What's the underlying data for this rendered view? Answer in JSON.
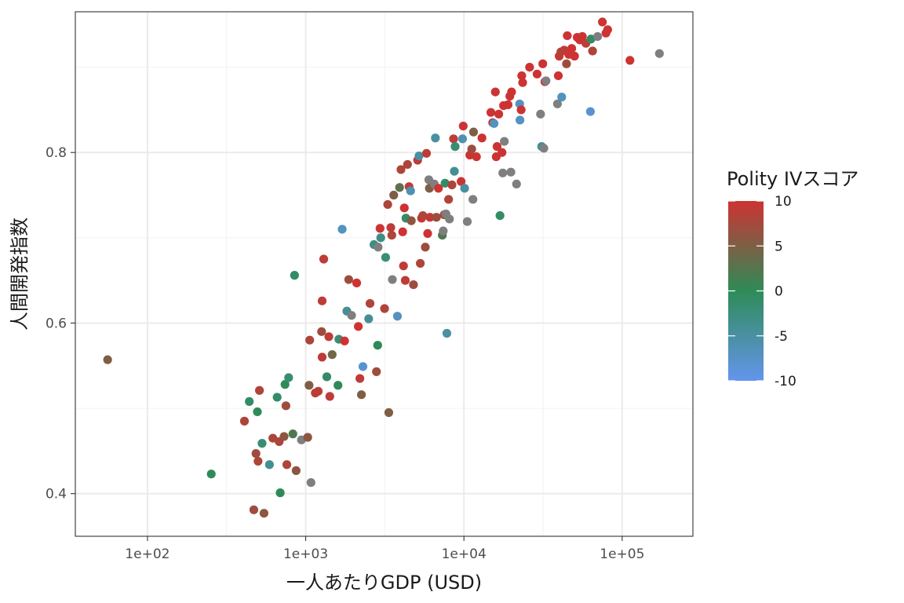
{
  "chart_data": {
    "type": "scatter",
    "title": "",
    "xlabel": "一人あたりGDP (USD)",
    "ylabel": "人間開発指数",
    "x_scale": "log10",
    "xlim": [
      35,
      280000
    ],
    "ylim": [
      0.35,
      0.965
    ],
    "x_ticks": [
      100,
      1000,
      10000,
      100000
    ],
    "x_tick_labels": [
      "1e+02",
      "1e+03",
      "1e+04",
      "1e+05"
    ],
    "y_ticks": [
      0.4,
      0.6,
      0.8
    ],
    "y_tick_labels": [
      "0.4",
      "0.6",
      "0.8"
    ],
    "grid": true,
    "legend": {
      "title": "Polity IVスコア",
      "position": "right",
      "type": "colorbar",
      "range": [
        -10,
        10
      ],
      "breaks": [
        10,
        5,
        0,
        -5,
        -10
      ],
      "break_labels": [
        "10",
        "5",
        "0",
        "-5",
        "-10"
      ],
      "low_color": "#6495ED",
      "mid_color": "#2E8B57",
      "high_color": "#CD3333"
    },
    "na_color": "#7F7F7F",
    "points": [
      {
        "x": 56,
        "y": 0.557,
        "s": 5
      },
      {
        "x": 253,
        "y": 0.423,
        "s": 0
      },
      {
        "x": 440,
        "y": 0.508,
        "s": -1
      },
      {
        "x": 470,
        "y": 0.381,
        "s": 7
      },
      {
        "x": 410,
        "y": 0.485,
        "s": 8
      },
      {
        "x": 485,
        "y": 0.447,
        "s": 7
      },
      {
        "x": 495,
        "y": 0.496,
        "s": 0
      },
      {
        "x": 500,
        "y": 0.438,
        "s": 8
      },
      {
        "x": 510,
        "y": 0.521,
        "s": 8
      },
      {
        "x": 530,
        "y": 0.459,
        "s": -2
      },
      {
        "x": 545,
        "y": 0.377,
        "s": 6
      },
      {
        "x": 590,
        "y": 0.434,
        "s": -4
      },
      {
        "x": 620,
        "y": 0.465,
        "s": 8
      },
      {
        "x": 660,
        "y": 0.513,
        "s": -1
      },
      {
        "x": 680,
        "y": 0.461,
        "s": 8
      },
      {
        "x": 690,
        "y": 0.401,
        "s": 0
      },
      {
        "x": 730,
        "y": 0.467,
        "s": 6
      },
      {
        "x": 740,
        "y": 0.528,
        "s": 0
      },
      {
        "x": 750,
        "y": 0.503,
        "s": 7
      },
      {
        "x": 760,
        "y": 0.434,
        "s": 8
      },
      {
        "x": 780,
        "y": 0.536,
        "s": -2
      },
      {
        "x": 830,
        "y": 0.47,
        "s": 2
      },
      {
        "x": 850,
        "y": 0.656,
        "s": -1
      },
      {
        "x": 870,
        "y": 0.427,
        "s": 6
      },
      {
        "x": 940,
        "y": 0.463,
        "s": null
      },
      {
        "x": 1030,
        "y": 0.466,
        "s": 6
      },
      {
        "x": 1050,
        "y": 0.527,
        "s": 5
      },
      {
        "x": 1060,
        "y": 0.58,
        "s": 8
      },
      {
        "x": 1080,
        "y": 0.413,
        "s": null
      },
      {
        "x": 1150,
        "y": 0.518,
        "s": 9
      },
      {
        "x": 1200,
        "y": 0.52,
        "s": 9
      },
      {
        "x": 1260,
        "y": 0.59,
        "s": 7
      },
      {
        "x": 1270,
        "y": 0.56,
        "s": 9
      },
      {
        "x": 1270,
        "y": 0.626,
        "s": 9
      },
      {
        "x": 1300,
        "y": 0.675,
        "s": 9
      },
      {
        "x": 1360,
        "y": 0.537,
        "s": -1
      },
      {
        "x": 1400,
        "y": 0.584,
        "s": 9
      },
      {
        "x": 1420,
        "y": 0.514,
        "s": 9
      },
      {
        "x": 1470,
        "y": 0.563,
        "s": 4
      },
      {
        "x": 1600,
        "y": 0.527,
        "s": 0
      },
      {
        "x": 1620,
        "y": 0.581,
        "s": -2
      },
      {
        "x": 1700,
        "y": 0.71,
        "s": -7
      },
      {
        "x": 1760,
        "y": 0.579,
        "s": 10
      },
      {
        "x": 1820,
        "y": 0.614,
        "s": -4
      },
      {
        "x": 1870,
        "y": 0.651,
        "s": 7
      },
      {
        "x": 1950,
        "y": 0.609,
        "s": null
      },
      {
        "x": 2100,
        "y": 0.647,
        "s": 10
      },
      {
        "x": 2150,
        "y": 0.596,
        "s": 10
      },
      {
        "x": 2200,
        "y": 0.535,
        "s": 9
      },
      {
        "x": 2250,
        "y": 0.516,
        "s": 5
      },
      {
        "x": 2300,
        "y": 0.549,
        "s": -8
      },
      {
        "x": 2500,
        "y": 0.605,
        "s": -4
      },
      {
        "x": 2550,
        "y": 0.623,
        "s": 8
      },
      {
        "x": 2700,
        "y": 0.692,
        "s": -3
      },
      {
        "x": 2800,
        "y": 0.543,
        "s": 7
      },
      {
        "x": 2850,
        "y": 0.574,
        "s": 0
      },
      {
        "x": 2870,
        "y": 0.689,
        "s": null
      },
      {
        "x": 2950,
        "y": 0.711,
        "s": 10
      },
      {
        "x": 2980,
        "y": 0.7,
        "s": -3
      },
      {
        "x": 3150,
        "y": 0.617,
        "s": 8
      },
      {
        "x": 3200,
        "y": 0.677,
        "s": -2
      },
      {
        "x": 3300,
        "y": 0.739,
        "s": 8
      },
      {
        "x": 3350,
        "y": 0.495,
        "s": 5
      },
      {
        "x": 3450,
        "y": 0.712,
        "s": 9
      },
      {
        "x": 3500,
        "y": 0.703,
        "s": 8
      },
      {
        "x": 3530,
        "y": 0.651,
        "s": null
      },
      {
        "x": 3600,
        "y": 0.75,
        "s": 5
      },
      {
        "x": 3800,
        "y": 0.608,
        "s": -7
      },
      {
        "x": 3920,
        "y": 0.759,
        "s": 3
      },
      {
        "x": 4000,
        "y": 0.78,
        "s": 8
      },
      {
        "x": 4100,
        "y": 0.707,
        "s": 10
      },
      {
        "x": 4150,
        "y": 0.667,
        "s": 9
      },
      {
        "x": 4200,
        "y": 0.735,
        "s": 10
      },
      {
        "x": 4260,
        "y": 0.65,
        "s": 9
      },
      {
        "x": 4300,
        "y": 0.723,
        "s": -1
      },
      {
        "x": 4400,
        "y": 0.786,
        "s": 8
      },
      {
        "x": 4500,
        "y": 0.76,
        "s": 9
      },
      {
        "x": 4600,
        "y": 0.755,
        "s": -6
      },
      {
        "x": 4650,
        "y": 0.72,
        "s": 6
      },
      {
        "x": 4800,
        "y": 0.645,
        "s": 7
      },
      {
        "x": 5100,
        "y": 0.791,
        "s": 9
      },
      {
        "x": 5200,
        "y": 0.796,
        "s": -5
      },
      {
        "x": 5300,
        "y": 0.67,
        "s": 8
      },
      {
        "x": 5400,
        "y": 0.723,
        "s": 10
      },
      {
        "x": 5500,
        "y": 0.726,
        "s": 8
      },
      {
        "x": 5700,
        "y": 0.689,
        "s": 7
      },
      {
        "x": 5800,
        "y": 0.799,
        "s": 9
      },
      {
        "x": 5900,
        "y": 0.705,
        "s": 10
      },
      {
        "x": 6000,
        "y": 0.768,
        "s": null
      },
      {
        "x": 6050,
        "y": 0.758,
        "s": 5
      },
      {
        "x": 6100,
        "y": 0.724,
        "s": 9
      },
      {
        "x": 6500,
        "y": 0.763,
        "s": null
      },
      {
        "x": 6600,
        "y": 0.817,
        "s": -5
      },
      {
        "x": 6700,
        "y": 0.724,
        "s": 7
      },
      {
        "x": 6900,
        "y": 0.758,
        "s": 10
      },
      {
        "x": 7300,
        "y": 0.703,
        "s": 2
      },
      {
        "x": 7400,
        "y": 0.708,
        "s": null
      },
      {
        "x": 7500,
        "y": 0.727,
        "s": 7
      },
      {
        "x": 7600,
        "y": 0.764,
        "s": -1
      },
      {
        "x": 7700,
        "y": 0.728,
        "s": null
      },
      {
        "x": 7800,
        "y": 0.588,
        "s": -5
      },
      {
        "x": 8000,
        "y": 0.745,
        "s": 8
      },
      {
        "x": 8100,
        "y": 0.722,
        "s": null
      },
      {
        "x": 8400,
        "y": 0.762,
        "s": 8
      },
      {
        "x": 8600,
        "y": 0.816,
        "s": 9
      },
      {
        "x": 8700,
        "y": 0.778,
        "s": -4
      },
      {
        "x": 8800,
        "y": 0.807,
        "s": -2
      },
      {
        "x": 9600,
        "y": 0.766,
        "s": 10
      },
      {
        "x": 9800,
        "y": 0.816,
        "s": -6
      },
      {
        "x": 9900,
        "y": 0.831,
        "s": 10
      },
      {
        "x": 10100,
        "y": 0.758,
        "s": -5
      },
      {
        "x": 10500,
        "y": 0.719,
        "s": null
      },
      {
        "x": 10900,
        "y": 0.797,
        "s": 10
      },
      {
        "x": 11200,
        "y": 0.804,
        "s": 7
      },
      {
        "x": 11400,
        "y": 0.745,
        "s": null
      },
      {
        "x": 11500,
        "y": 0.824,
        "s": 5
      },
      {
        "x": 12000,
        "y": 0.795,
        "s": 10
      },
      {
        "x": 13000,
        "y": 0.817,
        "s": 10
      },
      {
        "x": 14800,
        "y": 0.847,
        "s": 10
      },
      {
        "x": 15200,
        "y": 0.835,
        "s": 9
      },
      {
        "x": 15500,
        "y": 0.834,
        "s": -7
      },
      {
        "x": 15800,
        "y": 0.871,
        "s": 10
      },
      {
        "x": 16000,
        "y": 0.795,
        "s": 10
      },
      {
        "x": 16200,
        "y": 0.807,
        "s": 10
      },
      {
        "x": 16600,
        "y": 0.845,
        "s": 10
      },
      {
        "x": 16900,
        "y": 0.726,
        "s": -1
      },
      {
        "x": 17400,
        "y": 0.8,
        "s": 10
      },
      {
        "x": 17600,
        "y": 0.776,
        "s": null
      },
      {
        "x": 17800,
        "y": 0.855,
        "s": 10
      },
      {
        "x": 18000,
        "y": 0.813,
        "s": null
      },
      {
        "x": 19000,
        "y": 0.856,
        "s": 10
      },
      {
        "x": 19500,
        "y": 0.866,
        "s": 10
      },
      {
        "x": 19800,
        "y": 0.777,
        "s": null
      },
      {
        "x": 20000,
        "y": 0.871,
        "s": 10
      },
      {
        "x": 21500,
        "y": 0.763,
        "s": null
      },
      {
        "x": 22500,
        "y": 0.857,
        "s": -7
      },
      {
        "x": 22600,
        "y": 0.838,
        "s": -7
      },
      {
        "x": 23000,
        "y": 0.85,
        "s": 10
      },
      {
        "x": 23200,
        "y": 0.89,
        "s": 10
      },
      {
        "x": 23500,
        "y": 0.882,
        "s": 10
      },
      {
        "x": 26000,
        "y": 0.9,
        "s": 10
      },
      {
        "x": 29000,
        "y": 0.892,
        "s": 10
      },
      {
        "x": 30500,
        "y": 0.845,
        "s": null
      },
      {
        "x": 31000,
        "y": 0.807,
        "s": -4
      },
      {
        "x": 31500,
        "y": 0.904,
        "s": 10
      },
      {
        "x": 32000,
        "y": 0.805,
        "s": null
      },
      {
        "x": 32500,
        "y": 0.883,
        "s": 10
      },
      {
        "x": 33000,
        "y": 0.884,
        "s": null
      },
      {
        "x": 39000,
        "y": 0.857,
        "s": null
      },
      {
        "x": 39500,
        "y": 0.89,
        "s": 10
      },
      {
        "x": 40000,
        "y": 0.913,
        "s": 10
      },
      {
        "x": 41000,
        "y": 0.918,
        "s": 8
      },
      {
        "x": 41500,
        "y": 0.865,
        "s": -7
      },
      {
        "x": 43000,
        "y": 0.92,
        "s": 9
      },
      {
        "x": 44500,
        "y": 0.904,
        "s": 7
      },
      {
        "x": 45000,
        "y": 0.937,
        "s": 10
      },
      {
        "x": 46000,
        "y": 0.915,
        "s": 10
      },
      {
        "x": 48000,
        "y": 0.922,
        "s": 10
      },
      {
        "x": 50000,
        "y": 0.913,
        "s": 10
      },
      {
        "x": 52000,
        "y": 0.935,
        "s": 10
      },
      {
        "x": 54000,
        "y": 0.932,
        "s": 10
      },
      {
        "x": 56000,
        "y": 0.936,
        "s": 10
      },
      {
        "x": 59000,
        "y": 0.928,
        "s": 9
      },
      {
        "x": 63000,
        "y": 0.848,
        "s": -8
      },
      {
        "x": 63500,
        "y": 0.933,
        "s": -1
      },
      {
        "x": 65000,
        "y": 0.919,
        "s": 8
      },
      {
        "x": 70000,
        "y": 0.936,
        "s": null
      },
      {
        "x": 75000,
        "y": 0.953,
        "s": 10
      },
      {
        "x": 79000,
        "y": 0.94,
        "s": 10
      },
      {
        "x": 81000,
        "y": 0.944,
        "s": 10
      },
      {
        "x": 112000,
        "y": 0.908,
        "s": 10
      },
      {
        "x": 172000,
        "y": 0.916,
        "s": null
      }
    ]
  }
}
